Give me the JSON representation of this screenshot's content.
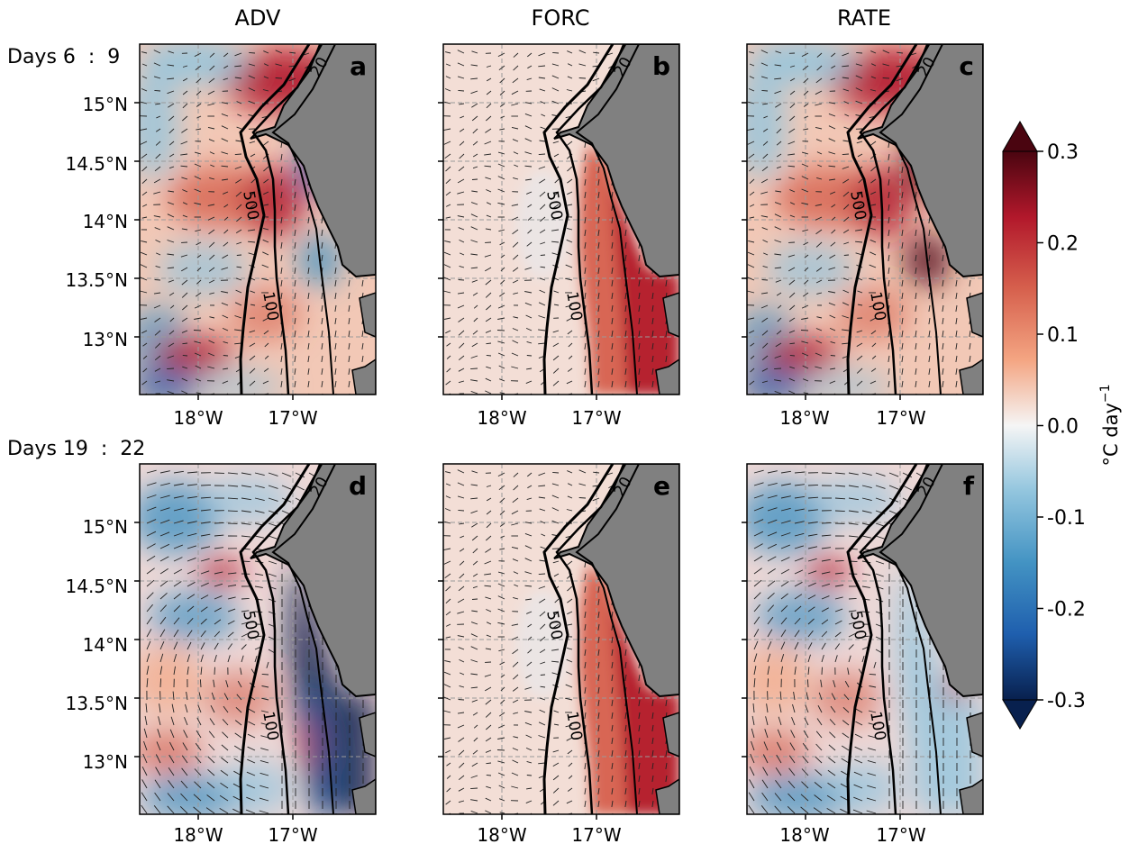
{
  "figure": {
    "columns": [
      "ADV",
      "FORC",
      "RATE"
    ],
    "rows": [
      {
        "label": "Days 6  :  9",
        "panels": [
          "a",
          "b",
          "c"
        ]
      },
      {
        "label": "Days 19  :  22",
        "panels": [
          "d",
          "e",
          "f"
        ]
      }
    ],
    "lat_ticks": [
      "15°N",
      "14.5°N",
      "14°N",
      "13.5°N",
      "13°N"
    ],
    "lon_ticks": [
      "18°W",
      "17°W"
    ],
    "contour_labels": [
      "500",
      "100",
      "20"
    ],
    "land_color": "#808080",
    "grid": true
  },
  "colorbar": {
    "label": "°C day",
    "label_exponent": "−1",
    "ticks": [
      "0.3",
      "0.2",
      "0.1",
      "0.0",
      "-0.1",
      "-0.2",
      "-0.3"
    ],
    "range": [
      -0.3,
      0.3
    ],
    "extend": "both",
    "colormap": [
      "#08204e",
      "#1f5fae",
      "#4393c3",
      "#92c5de",
      "#f5f5f5",
      "#f4a582",
      "#d6604d",
      "#b2182b",
      "#4a0510"
    ]
  }
}
